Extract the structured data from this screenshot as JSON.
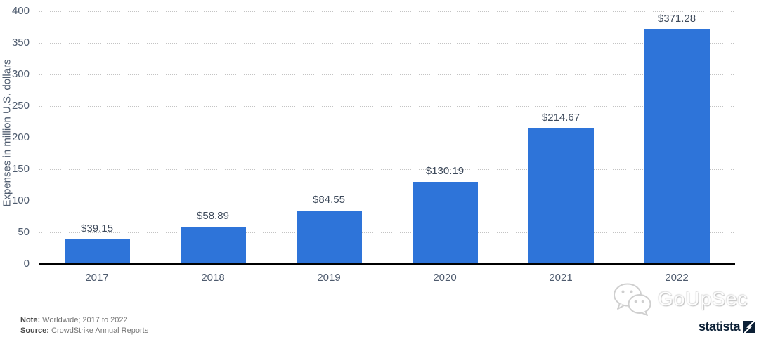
{
  "chart_data": {
    "type": "bar",
    "categories": [
      "2017",
      "2018",
      "2019",
      "2020",
      "2021",
      "2022"
    ],
    "values": [
      39.15,
      58.89,
      84.55,
      130.19,
      214.67,
      371.28
    ],
    "value_labels": [
      "$39.15",
      "$58.89",
      "$84.55",
      "$130.19",
      "$214.67",
      "$371.28"
    ],
    "title": "",
    "xlabel": "",
    "ylabel": "Expenses in million U.S. dollars",
    "ylim": [
      0,
      400
    ],
    "ytick_step": 50,
    "grid": "dotted horizontal",
    "bar_color": "#2e74d9"
  },
  "footer": {
    "note_label": "Note:",
    "note_text": " Worldwide; 2017 to 2022",
    "source_label": "Source:",
    "source_text": " CrowdStrike Annual Reports"
  },
  "watermark": {
    "text": "GoUpSec",
    "icon": "wechat-icon"
  },
  "branding": {
    "statista": "statista"
  }
}
